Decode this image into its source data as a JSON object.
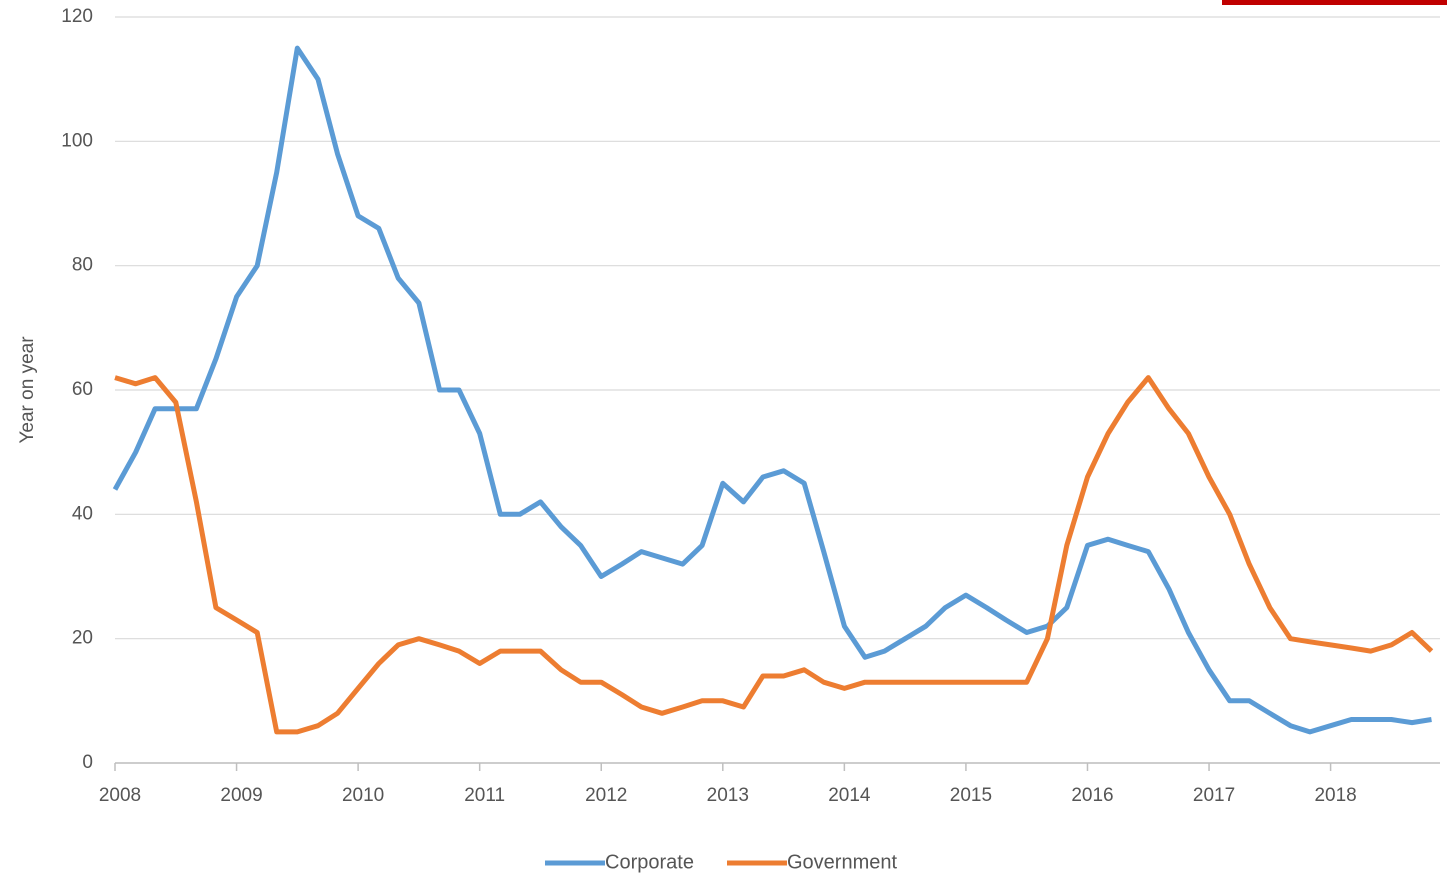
{
  "chart_data": {
    "type": "line",
    "y_label": "Year on year",
    "x": [
      2008.0,
      2008.17,
      2008.33,
      2008.5,
      2008.67,
      2008.83,
      2009.0,
      2009.17,
      2009.33,
      2009.5,
      2009.67,
      2009.83,
      2010.0,
      2010.17,
      2010.33,
      2010.5,
      2010.67,
      2010.83,
      2011.0,
      2011.17,
      2011.33,
      2011.5,
      2011.67,
      2011.83,
      2012.0,
      2012.17,
      2012.33,
      2012.5,
      2012.67,
      2012.83,
      2013.0,
      2013.17,
      2013.33,
      2013.5,
      2013.67,
      2013.83,
      2014.0,
      2014.17,
      2014.33,
      2014.5,
      2014.67,
      2014.83,
      2015.0,
      2015.17,
      2015.33,
      2015.5,
      2015.67,
      2015.83,
      2016.0,
      2016.17,
      2016.33,
      2016.5,
      2016.67,
      2016.83,
      2017.0,
      2017.17,
      2017.33,
      2017.5,
      2017.67,
      2017.83,
      2018.0,
      2018.17,
      2018.33,
      2018.5,
      2018.67,
      2018.83
    ],
    "series": [
      {
        "name": "Corporate",
        "color": "#5b9bd5",
        "values": [
          44,
          50,
          57,
          57,
          57,
          65,
          75,
          80,
          95,
          115,
          110,
          98,
          88,
          86,
          78,
          74,
          60,
          60,
          53,
          40,
          40,
          42,
          38,
          35,
          30,
          32,
          34,
          33,
          32,
          35,
          45,
          42,
          46,
          47,
          45,
          34,
          22,
          17,
          18,
          20,
          22,
          25,
          27,
          25,
          23,
          21,
          22,
          25,
          35,
          36,
          35,
          34,
          28,
          21,
          15,
          10,
          10,
          8,
          6,
          5,
          6,
          7,
          7,
          7,
          6.5,
          7
        ]
      },
      {
        "name": "Government",
        "color": "#ed7d31",
        "values": [
          62,
          61,
          62,
          58,
          42,
          25,
          23,
          21,
          5,
          5,
          6,
          8,
          12,
          16,
          19,
          20,
          19,
          18,
          16,
          18,
          18,
          18,
          15,
          13,
          13,
          11,
          9,
          8,
          9,
          10,
          10,
          9,
          14,
          14,
          15,
          13,
          12,
          13,
          13,
          13,
          13,
          13,
          13,
          13,
          13,
          13,
          20,
          35,
          46,
          53,
          58,
          62,
          57,
          53,
          46,
          40,
          32,
          25,
          20,
          19.5,
          19,
          18.5,
          18,
          19,
          21,
          18
        ]
      }
    ],
    "xlim": [
      2008,
      2018.9
    ],
    "xticks": [
      2008,
      2009,
      2010,
      2011,
      2012,
      2013,
      2014,
      2015,
      2016,
      2017,
      2018
    ],
    "ylim": [
      0,
      120
    ],
    "yticks": [
      0,
      20,
      40,
      60,
      80,
      100,
      120
    ],
    "grid": true,
    "legend": "bottom"
  }
}
